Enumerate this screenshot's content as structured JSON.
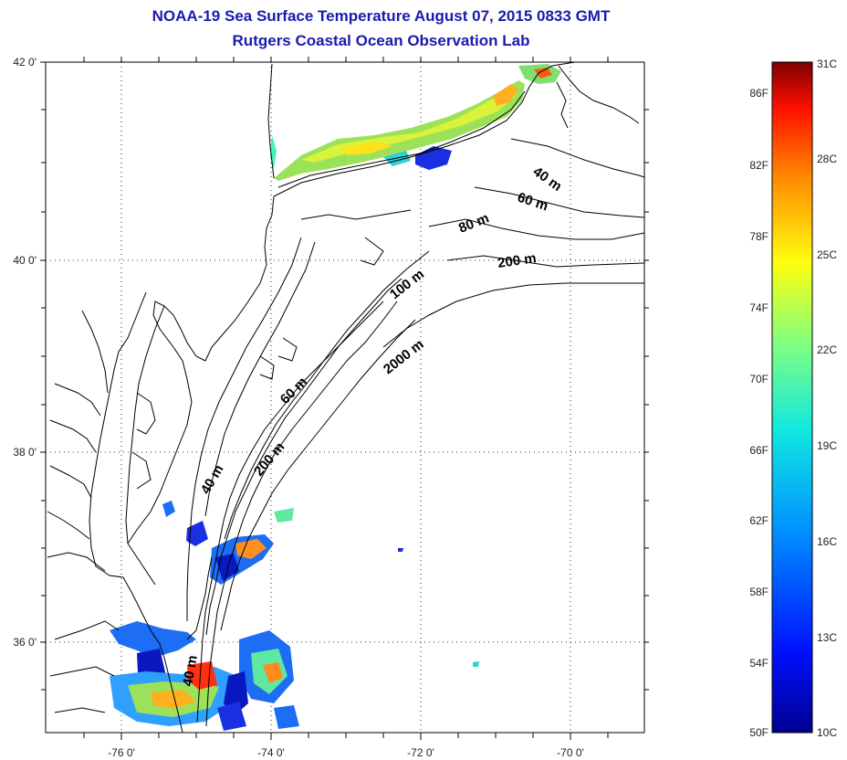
{
  "title": {
    "line1": "NOAA-19 Sea Surface Temperature August 07, 2015 0833 GMT",
    "line2": "Rutgers Coastal Ocean Observation Lab"
  },
  "axes": {
    "lat_ticks": [
      "42 0'",
      "40 0'",
      "38 0'",
      "36 0'"
    ],
    "lon_ticks": [
      "-76 0'",
      "-74 0'",
      "-72 0'",
      "-70 0'"
    ]
  },
  "isobaths": [
    "40 m",
    "60 m",
    "80 m",
    "200 m",
    "100 m",
    "2000 m",
    "60 m",
    "200 m",
    "40 m",
    "40 m"
  ],
  "colorbar": {
    "fahrenheit": [
      "86F",
      "82F",
      "78F",
      "74F",
      "70F",
      "66F",
      "62F",
      "58F",
      "54F",
      "50F"
    ],
    "celsius": [
      "31C",
      "28C",
      "25C",
      "22C",
      "19C",
      "16C",
      "13C",
      "10C"
    ]
  },
  "colors": {
    "title": "#1a1ab0",
    "grid": "#333333"
  }
}
